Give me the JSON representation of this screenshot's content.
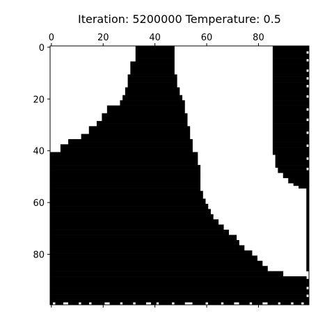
{
  "chart_data": {
    "type": "heatmap",
    "title": "Iteration: 5200000 Temperature: 0.5",
    "title_parts": {
      "iteration_label": "Iteration:",
      "iteration_value": "5200000",
      "temperature_label": "Temperature:",
      "temperature_value": "0.5"
    },
    "xlabel": "",
    "ylabel": "",
    "grid_size": [
      100,
      100
    ],
    "xlim": [
      -0.5,
      99.5
    ],
    "ylim": [
      99.5,
      -0.5
    ],
    "x_axis_position": "top",
    "x_ticks": [
      0,
      20,
      40,
      60,
      80
    ],
    "y_ticks": [
      0,
      20,
      40,
      60,
      80
    ],
    "colormap": {
      "1": "#000000",
      "0": "#ffffff"
    },
    "description_of_values": "binary lattice: 1 = black (spin down), 0 = white (spin up)",
    "left_region_boundary": [
      [
        0,
        33,
        48
      ],
      [
        5,
        31,
        48
      ],
      [
        10,
        30,
        49
      ],
      [
        15,
        29,
        50
      ],
      [
        18,
        28,
        51
      ],
      [
        20,
        27,
        52
      ],
      [
        22,
        22,
        52
      ],
      [
        25,
        20,
        53
      ],
      [
        28,
        18,
        53
      ],
      [
        30,
        15,
        54
      ],
      [
        33,
        12,
        54
      ],
      [
        35,
        7,
        55
      ],
      [
        37,
        4,
        55
      ],
      [
        40,
        0,
        57
      ],
      [
        45,
        0,
        58
      ],
      [
        50,
        0,
        58
      ],
      [
        55,
        0,
        59
      ],
      [
        58,
        0,
        60
      ],
      [
        60,
        0,
        61
      ],
      [
        62,
        0,
        62
      ],
      [
        64,
        0,
        63
      ],
      [
        66,
        0,
        65
      ],
      [
        68,
        0,
        67
      ],
      [
        70,
        0,
        69
      ],
      [
        72,
        0,
        72
      ],
      [
        74,
        0,
        73
      ],
      [
        76,
        0,
        75
      ],
      [
        78,
        0,
        78
      ],
      [
        80,
        0,
        80
      ],
      [
        82,
        0,
        82
      ],
      [
        84,
        0,
        84
      ],
      [
        86,
        0,
        90
      ],
      [
        88,
        0,
        100
      ],
      [
        100,
        0,
        100
      ]
    ],
    "right_region_boundary": [
      [
        0,
        86
      ],
      [
        40,
        86
      ],
      [
        42,
        87
      ],
      [
        47,
        88
      ],
      [
        49,
        90
      ],
      [
        51,
        92
      ],
      [
        53,
        94
      ],
      [
        54,
        96
      ]
    ],
    "right_region_bottom_row": 54,
    "noise_edge_column": 99,
    "noise_edge_row": 99
  }
}
